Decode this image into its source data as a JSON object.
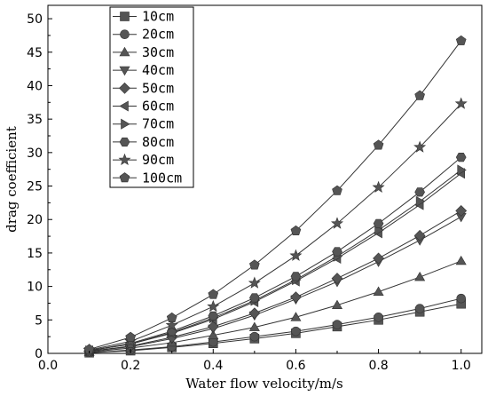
{
  "chart_data": {
    "type": "line",
    "xlabel": "Water flow velocity/m/s",
    "ylabel": "drag coefficient",
    "xlim": [
      0.0,
      1.05
    ],
    "ylim": [
      0,
      52
    ],
    "x_ticks": [
      0.0,
      0.2,
      0.4,
      0.6,
      0.8,
      1.0
    ],
    "x_tick_labels": [
      "0.0",
      "0.2",
      "0.4",
      "0.6",
      "0.8",
      "1.0"
    ],
    "y_ticks": [
      0,
      5,
      10,
      15,
      20,
      25,
      30,
      35,
      40,
      45,
      50
    ],
    "y_tick_labels": [
      "0",
      "5",
      "10",
      "15",
      "20",
      "25",
      "30",
      "35",
      "40",
      "45",
      "50"
    ],
    "grid": false,
    "legend_position": "top-left",
    "x": [
      0.1,
      0.2,
      0.3,
      0.4,
      0.5,
      0.6,
      0.7,
      0.8,
      0.9,
      1.0
    ],
    "series": [
      {
        "name": "10cm",
        "marker": "square",
        "values": [
          0.1,
          0.4,
          0.9,
          1.5,
          2.2,
          3.0,
          4.0,
          5.0,
          6.2,
          7.4
        ]
      },
      {
        "name": "20cm",
        "marker": "circle",
        "values": [
          0.1,
          0.5,
          1.0,
          1.7,
          2.5,
          3.3,
          4.3,
          5.4,
          6.7,
          8.2
        ]
      },
      {
        "name": "30cm",
        "marker": "triangle-up",
        "values": [
          0.2,
          0.8,
          1.6,
          2.7,
          3.9,
          5.4,
          7.2,
          9.2,
          11.4,
          13.8
        ]
      },
      {
        "name": "40cm",
        "marker": "triangle-down",
        "values": [
          0.3,
          1.0,
          2.2,
          3.7,
          5.7,
          8.1,
          10.7,
          13.7,
          16.9,
          20.4
        ]
      },
      {
        "name": "50cm",
        "marker": "diamond",
        "values": [
          0.3,
          1.1,
          2.4,
          4.0,
          6.0,
          8.4,
          11.2,
          14.2,
          17.6,
          21.3
        ]
      },
      {
        "name": "60cm",
        "marker": "triangle-left",
        "values": [
          0.4,
          1.4,
          3.0,
          5.1,
          7.7,
          10.8,
          14.2,
          18.0,
          22.2,
          26.9
        ]
      },
      {
        "name": "70cm",
        "marker": "triangle-right",
        "values": [
          0.4,
          1.4,
          3.1,
          5.3,
          7.9,
          11.0,
          14.5,
          18.4,
          22.7,
          27.4
        ]
      },
      {
        "name": "80cm",
        "marker": "hexagon",
        "values": [
          0.4,
          1.5,
          3.3,
          5.6,
          8.3,
          11.5,
          15.2,
          19.4,
          24.1,
          29.3
        ]
      },
      {
        "name": "90cm",
        "marker": "star",
        "values": [
          0.5,
          1.8,
          4.2,
          7.0,
          10.5,
          14.6,
          19.4,
          24.8,
          30.8,
          37.3
        ]
      },
      {
        "name": "100cm",
        "marker": "pentagon",
        "values": [
          0.6,
          2.4,
          5.3,
          8.8,
          13.2,
          18.3,
          24.3,
          31.1,
          38.5,
          46.7
        ]
      }
    ]
  }
}
